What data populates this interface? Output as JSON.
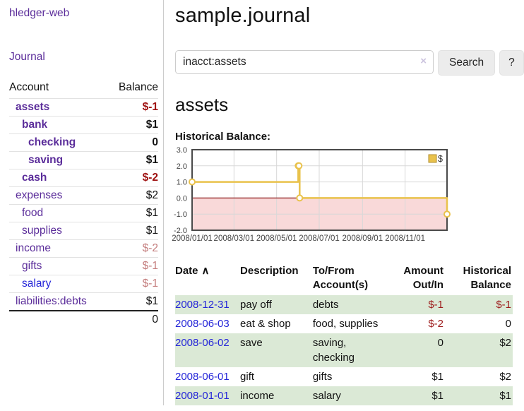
{
  "sidebar": {
    "brand": "hledger-web",
    "nav_journal": "Journal",
    "columns": {
      "account": "Account",
      "balance": "Balance"
    },
    "rows": [
      {
        "account": "assets",
        "balance": "$-1"
      },
      {
        "account": "bank",
        "balance": "$1"
      },
      {
        "account": "checking",
        "balance": "0"
      },
      {
        "account": "saving",
        "balance": "$1"
      },
      {
        "account": "cash",
        "balance": "$-2"
      },
      {
        "account": "expenses",
        "balance": "$2"
      },
      {
        "account": "food",
        "balance": "$1"
      },
      {
        "account": "supplies",
        "balance": "$1"
      },
      {
        "account": "income",
        "balance": "$-2"
      },
      {
        "account": "gifts",
        "balance": "$-1"
      },
      {
        "account": "salary",
        "balance": "$-1"
      },
      {
        "account": "liabilities:debts",
        "balance": "$1"
      }
    ],
    "total": "0"
  },
  "header": {
    "title": "sample.journal"
  },
  "search": {
    "value": "inacct:assets",
    "clear_icon": "×",
    "button_label": "Search",
    "help_label": "?"
  },
  "main": {
    "account_heading": "assets"
  },
  "chart_data": {
    "type": "line",
    "title": "Historical Balance:",
    "step": true,
    "series": [
      {
        "name": "$",
        "points": [
          [
            "2008-01-01",
            1
          ],
          [
            "2008-06-01",
            2
          ],
          [
            "2008-06-02",
            2
          ],
          [
            "2008-06-03",
            0
          ],
          [
            "2008-12-31",
            -1
          ]
        ]
      }
    ],
    "ylim": [
      -2,
      3
    ],
    "y_ticks": [
      3.0,
      2.0,
      1.0,
      0.0,
      -1.0,
      -2.0
    ],
    "x_ticks": [
      "2008/01/01",
      "2008/03/01",
      "2008/05/01",
      "2008/07/01",
      "2008/09/01",
      "2008/11/01"
    ],
    "legend": {
      "label": "$",
      "position": "top-right"
    },
    "grid": true,
    "colors": {
      "line": "#e9c24c",
      "marker_fill": "#ffffff",
      "negative_region": "#f9d9d9",
      "zero_line": "#8f1a1a",
      "grid": "#d8d8d8",
      "border": "#4a4a4a",
      "axis_text": "#444444"
    }
  },
  "table": {
    "sort_icon": "∧",
    "headers": {
      "date": "Date",
      "description": "Description",
      "account": "To/From Account(s)",
      "amount": "Amount Out/In",
      "balance": "Historical Balance"
    },
    "rows": [
      {
        "date": "2008-12-31",
        "description": "pay off",
        "accounts": "debts",
        "amount": "$-1",
        "balance": "$-1"
      },
      {
        "date": "2008-06-03",
        "description": "eat & shop",
        "accounts": "food, supplies",
        "amount": "$-2",
        "balance": "0"
      },
      {
        "date": "2008-06-02",
        "description": "save",
        "accounts": "saving, checking",
        "amount": "0",
        "balance": "$2"
      },
      {
        "date": "2008-06-01",
        "description": "gift",
        "accounts": "gifts",
        "amount": "$1",
        "balance": "$2"
      },
      {
        "date": "2008-01-01",
        "description": "income",
        "accounts": "salary",
        "amount": "$1",
        "balance": "$1"
      }
    ]
  }
}
